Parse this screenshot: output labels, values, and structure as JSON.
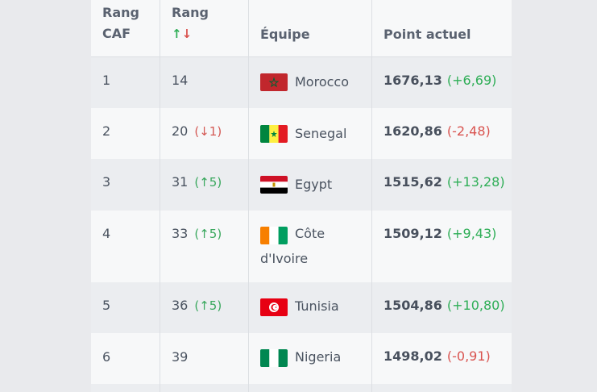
{
  "header": {
    "col_rank_caf_line1": "Rang",
    "col_rank_caf_line2": "CAF",
    "col_rank_line1": "Rang",
    "col_rank_up": "↑",
    "col_rank_down": "↓",
    "col_team": "Équipe",
    "col_points": "Point actuel"
  },
  "rows": [
    {
      "caf_rank": "1",
      "world_rank": "14",
      "rank_change": "",
      "rank_dir": "",
      "team": "Morocco",
      "team_line1": "",
      "team_line2": "",
      "points": "1676,13",
      "points_change": "(+6,69)",
      "points_dir": "up",
      "flag": "morocco-flag"
    },
    {
      "caf_rank": "2",
      "world_rank": "20",
      "rank_change": "(↓1)",
      "rank_dir": "down",
      "team": "Senegal",
      "team_line1": "",
      "team_line2": "",
      "points": "1620,86",
      "points_change": "(-2,48)",
      "points_dir": "down",
      "flag": "senegal-flag"
    },
    {
      "caf_rank": "3",
      "world_rank": "31",
      "rank_change": "(↑5)",
      "rank_dir": "up",
      "team": "Egypt",
      "team_line1": "",
      "team_line2": "",
      "points": "1515,62",
      "points_change": "(+13,28)",
      "points_dir": "up",
      "flag": "egypt-flag"
    },
    {
      "caf_rank": "4",
      "world_rank": "33",
      "rank_change": "(↑5)",
      "rank_dir": "up",
      "team": "",
      "team_line1": "Côte",
      "team_line2": "d'Ivoire",
      "points": "1509,12",
      "points_change": "(+9,43)",
      "points_dir": "up",
      "flag": "cote-divoire-flag"
    },
    {
      "caf_rank": "5",
      "world_rank": "36",
      "rank_change": "(↑5)",
      "rank_dir": "up",
      "team": "Tunisia",
      "team_line1": "",
      "team_line2": "",
      "points": "1504,86",
      "points_change": "(+10,80)",
      "points_dir": "up",
      "flag": "tunisia-flag"
    },
    {
      "caf_rank": "6",
      "world_rank": "39",
      "rank_change": "",
      "rank_dir": "",
      "team": "Nigeria",
      "team_line1": "",
      "team_line2": "",
      "points": "1498,02",
      "points_change": "(-0,91)",
      "points_dir": "down",
      "flag": "nigeria-flag"
    }
  ],
  "colors": {
    "up": "#3aa85e",
    "down": "#d45a55"
  }
}
